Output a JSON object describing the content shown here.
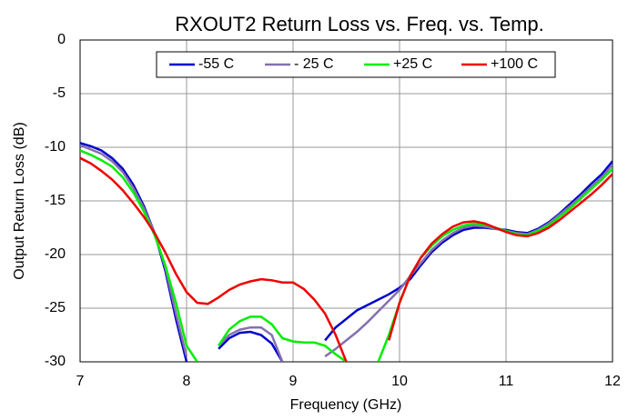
{
  "chart_data": {
    "type": "line",
    "title": "RXOUT2 Return Loss vs. Freq. vs. Temp.",
    "x_label": "Frequency (GHz)",
    "y_label": "Output Return Loss (dB)",
    "x": [
      7.0,
      7.1,
      7.2,
      7.3,
      7.4,
      7.5,
      7.6,
      7.7,
      7.8,
      7.9,
      8.0,
      8.1,
      8.2,
      8.3,
      8.4,
      8.5,
      8.6,
      8.7,
      8.8,
      8.9,
      9.0,
      9.1,
      9.2,
      9.3,
      9.4,
      9.5,
      9.6,
      9.7,
      9.8,
      9.9,
      10.0,
      10.1,
      10.2,
      10.3,
      10.4,
      10.5,
      10.6,
      10.7,
      10.8,
      10.9,
      11.0,
      11.1,
      11.2,
      11.3,
      11.4,
      11.5,
      11.6,
      11.7,
      11.8,
      11.9,
      12.0
    ],
    "series": [
      {
        "name": "-55 C",
        "color": "#0000cc",
        "values": [
          -9.6,
          -9.9,
          -10.3,
          -11,
          -12,
          -13.5,
          -15.5,
          -18,
          -21.5,
          -26,
          -30,
          null,
          null,
          -28.8,
          -27.8,
          -27.3,
          -27.2,
          -27.5,
          -28.3,
          -30,
          null,
          null,
          null,
          -28,
          -26.8,
          -26,
          -25.2,
          -24.7,
          -24.2,
          -23.7,
          -23.1,
          -22.3,
          -21,
          -19.8,
          -18.9,
          -18.2,
          -17.7,
          -17.5,
          -17.5,
          -17.6,
          -17.7,
          -17.9,
          -18,
          -17.6,
          -17,
          -16.2,
          -15.3,
          -14.4,
          -13.4,
          -12.5,
          -11.3
        ]
      },
      {
        "name": "- 25 C",
        "color": "#8470b0",
        "values": [
          -9.8,
          -10.2,
          -10.6,
          -11.3,
          -12.3,
          -13.8,
          -15.7,
          -18,
          -21.2,
          -25.5,
          -29.5,
          null,
          null,
          -28.5,
          -27.5,
          -27,
          -26.8,
          -26.8,
          -27.5,
          -30,
          null,
          null,
          null,
          -29.5,
          -28.8,
          -28,
          -27.2,
          -26.3,
          -25.3,
          -24.3,
          -23.3,
          -22,
          -20.8,
          -19.6,
          -18.7,
          -18,
          -17.5,
          -17.3,
          -17.4,
          -17.6,
          -17.8,
          -18,
          -18.1,
          -17.7,
          -17.1,
          -16.3,
          -15.5,
          -14.6,
          -13.7,
          -12.8,
          -11.6
        ]
      },
      {
        "name": "+25 C",
        "color": "#00ee00",
        "values": [
          -10.3,
          -10.7,
          -11.2,
          -11.8,
          -12.8,
          -14.2,
          -16,
          -18.2,
          -21,
          -24.5,
          -28.5,
          -30,
          null,
          -28.5,
          -27,
          -26.2,
          -25.8,
          -25.8,
          -26.5,
          -27.8,
          -28.1,
          -28.2,
          -28.2,
          -28.5,
          -29.3,
          -30,
          null,
          null,
          -30,
          -27.5,
          -24.5,
          -22,
          -20.3,
          -19.2,
          -18.3,
          -17.7,
          -17.3,
          -17.1,
          -17.2,
          -17.5,
          -17.8,
          -18.1,
          -18.2,
          -17.8,
          -17.3,
          -16.5,
          -15.7,
          -14.8,
          -13.9,
          -13,
          -12
        ]
      },
      {
        "name": "+100 C",
        "color": "#ee0000",
        "values": [
          -11,
          -11.5,
          -12.2,
          -13,
          -14,
          -15.2,
          -16.5,
          -18,
          -19.8,
          -21.8,
          -23.5,
          -24.5,
          -24.6,
          -24,
          -23.3,
          -22.8,
          -22.5,
          -22.3,
          -22.4,
          -22.6,
          -22.6,
          -23.2,
          -24.2,
          -25.5,
          -27.5,
          -30,
          null,
          null,
          null,
          -28,
          -24.5,
          -22,
          -20.3,
          -19,
          -18.1,
          -17.4,
          -17,
          -16.9,
          -17.1,
          -17.5,
          -17.9,
          -18.2,
          -18.3,
          -18,
          -17.5,
          -16.8,
          -16,
          -15.2,
          -14.4,
          -13.5,
          -12.5
        ]
      }
    ],
    "xlim": [
      7,
      12
    ],
    "xticks": [
      7,
      8,
      9,
      10,
      11,
      12
    ],
    "ylim": [
      -30,
      0
    ],
    "yticks": [
      0,
      -5,
      -10,
      -15,
      -20,
      -25,
      -30
    ],
    "grid": true,
    "legend": "top"
  }
}
